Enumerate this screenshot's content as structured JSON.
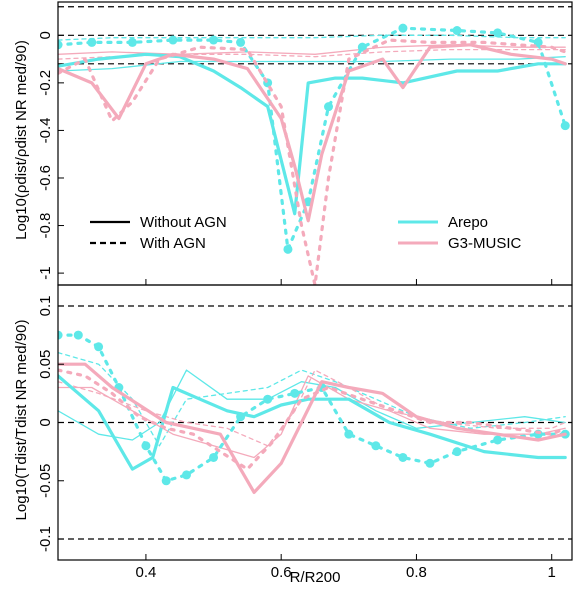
{
  "chart_data": [
    {
      "type": "line",
      "panel": "top",
      "ylabel": "Log10(ρdist/ρdist NR med/90)",
      "xlim": [
        0.27,
        1.03
      ],
      "ylim": [
        -1.05,
        0.14
      ],
      "yticks": [
        0,
        -0.2,
        -0.4,
        -0.6,
        -0.8,
        -1
      ],
      "ytick_labels": [
        "0",
        "-0.2",
        "-0.4",
        "-0.6",
        "-0.8",
        "-1"
      ],
      "reference_lines": [
        0.12,
        0.0,
        -0.12
      ],
      "legend": {
        "styles": [
          {
            "label": "Without AGN",
            "dash": "solid"
          },
          {
            "label": "With AGN",
            "dash": "dashed"
          }
        ],
        "colors": [
          {
            "label": "Arepo",
            "color": "#5ee8e8"
          },
          {
            "label": "G3-MUSIC",
            "color": "#f4aabb"
          }
        ]
      },
      "series": [
        {
          "group": "Arepo",
          "agn": false,
          "weight": "thick",
          "color": "#5ee8e8",
          "x": [
            0.27,
            0.33,
            0.4,
            0.45,
            0.5,
            0.54,
            0.58,
            0.62,
            0.64,
            0.68,
            0.72,
            0.78,
            0.86,
            0.92,
            0.98,
            1.02
          ],
          "y": [
            -0.13,
            -0.1,
            -0.08,
            -0.09,
            -0.15,
            -0.22,
            -0.3,
            -0.75,
            -0.2,
            -0.18,
            -0.18,
            -0.2,
            -0.15,
            -0.15,
            -0.12,
            -0.12
          ]
        },
        {
          "group": "Arepo",
          "agn": false,
          "weight": "thin",
          "color": "#5ee8e8",
          "x": [
            0.27,
            0.35,
            0.45,
            0.55,
            0.65,
            0.75,
            0.85,
            0.95,
            1.02
          ],
          "y": [
            -0.15,
            -0.14,
            -0.11,
            -0.11,
            -0.11,
            -0.11,
            -0.1,
            -0.1,
            -0.09
          ]
        },
        {
          "group": "Arepo",
          "agn": true,
          "weight": "thick",
          "color": "#5ee8e8",
          "x": [
            0.27,
            0.32,
            0.38,
            0.44,
            0.5,
            0.54,
            0.58,
            0.61,
            0.64,
            0.67,
            0.72,
            0.78,
            0.86,
            0.92,
            0.98,
            1.02
          ],
          "y": [
            -0.04,
            -0.03,
            -0.03,
            -0.02,
            -0.02,
            -0.03,
            -0.2,
            -0.9,
            -0.7,
            -0.3,
            -0.05,
            0.03,
            0.02,
            0.01,
            -0.03,
            -0.38
          ]
        },
        {
          "group": "Arepo",
          "agn": true,
          "weight": "thin",
          "color": "#5ee8e8",
          "x": [
            0.27,
            0.35,
            0.45,
            0.55,
            0.65,
            0.75,
            0.85,
            0.95,
            1.02
          ],
          "y": [
            -0.02,
            -0.01,
            -0.01,
            -0.01,
            -0.01,
            0.0,
            0.0,
            -0.01,
            -0.01
          ]
        },
        {
          "group": "G3-MUSIC",
          "agn": false,
          "weight": "thick",
          "color": "#f4aabb",
          "x": [
            0.27,
            0.32,
            0.36,
            0.4,
            0.44,
            0.5,
            0.55,
            0.6,
            0.62,
            0.64,
            0.66,
            0.7,
            0.75,
            0.78,
            0.82,
            0.88,
            0.94,
            1.0,
            1.02
          ],
          "y": [
            -0.14,
            -0.2,
            -0.35,
            -0.12,
            -0.08,
            -0.1,
            -0.14,
            -0.35,
            -0.55,
            -0.78,
            -0.5,
            -0.15,
            -0.1,
            -0.22,
            -0.05,
            -0.04,
            -0.08,
            -0.1,
            -0.12
          ]
        },
        {
          "group": "G3-MUSIC",
          "agn": false,
          "weight": "thin",
          "color": "#f4aabb",
          "x": [
            0.27,
            0.35,
            0.45,
            0.55,
            0.65,
            0.75,
            0.85,
            0.95,
            1.02
          ],
          "y": [
            -0.08,
            -0.07,
            -0.08,
            -0.07,
            -0.08,
            -0.05,
            -0.04,
            -0.05,
            -0.05
          ]
        },
        {
          "group": "G3-MUSIC",
          "agn": true,
          "weight": "thick",
          "color": "#f4aabb",
          "x": [
            0.27,
            0.31,
            0.35,
            0.38,
            0.42,
            0.48,
            0.55,
            0.6,
            0.63,
            0.65,
            0.67,
            0.7,
            0.76,
            0.82,
            0.9,
            1.0,
            1.02
          ],
          "y": [
            -0.16,
            -0.1,
            -0.36,
            -0.28,
            -0.1,
            -0.05,
            -0.06,
            -0.3,
            -0.8,
            -1.05,
            -0.6,
            -0.1,
            -0.02,
            -0.03,
            -0.03,
            -0.05,
            -0.07
          ]
        },
        {
          "group": "G3-MUSIC",
          "agn": true,
          "weight": "thin",
          "color": "#f4aabb",
          "x": [
            0.27,
            0.35,
            0.45,
            0.55,
            0.65,
            0.75,
            0.85,
            0.95,
            1.02
          ],
          "y": [
            -0.1,
            -0.09,
            -0.08,
            -0.08,
            -0.09,
            -0.07,
            -0.06,
            -0.06,
            -0.06
          ]
        }
      ]
    },
    {
      "type": "line",
      "panel": "bottom",
      "xlabel": "R/R200",
      "ylabel": "Log10(Tdist/Tdist NR med/90)",
      "xlim": [
        0.27,
        1.03
      ],
      "ylim": [
        -0.118,
        0.118
      ],
      "xticks": [
        0.4,
        0.6,
        0.8,
        1
      ],
      "xtick_labels": [
        "0.4",
        "0.6",
        "0.8",
        "1"
      ],
      "yticks": [
        0.1,
        0.05,
        0,
        -0.05,
        -0.1
      ],
      "ytick_labels": [
        "0.1",
        "0.05",
        "0",
        "-0.05",
        "-0.1"
      ],
      "reference_lines": [
        0.1,
        0.0,
        -0.1
      ],
      "series": [
        {
          "group": "Arepo",
          "agn": false,
          "weight": "thick",
          "color": "#5ee8e8",
          "x": [
            0.27,
            0.33,
            0.38,
            0.41,
            0.44,
            0.48,
            0.52,
            0.56,
            0.6,
            0.64,
            0.7,
            0.76,
            0.82,
            0.9,
            0.98,
            1.02
          ],
          "y": [
            0.04,
            0.01,
            -0.04,
            -0.03,
            0.03,
            0.02,
            0.01,
            0.005,
            0.015,
            0.02,
            0.02,
            0.0,
            -0.01,
            -0.025,
            -0.03,
            -0.03
          ]
        },
        {
          "group": "Arepo",
          "agn": false,
          "weight": "thin",
          "color": "#5ee8e8",
          "x": [
            0.27,
            0.33,
            0.38,
            0.42,
            0.46,
            0.52,
            0.58,
            0.63,
            0.68,
            0.74,
            0.8,
            0.88,
            0.96,
            1.02
          ],
          "y": [
            0.01,
            -0.01,
            -0.015,
            0.0,
            0.045,
            0.02,
            0.02,
            0.035,
            0.03,
            0.01,
            -0.005,
            0.0,
            0.005,
            0.0
          ]
        },
        {
          "group": "Arepo",
          "agn": true,
          "weight": "thick",
          "color": "#5ee8e8",
          "x": [
            0.27,
            0.3,
            0.33,
            0.36,
            0.4,
            0.43,
            0.46,
            0.5,
            0.54,
            0.58,
            0.62,
            0.66,
            0.7,
            0.74,
            0.78,
            0.82,
            0.86,
            0.92,
            0.98,
            1.02
          ],
          "y": [
            0.075,
            0.075,
            0.065,
            0.03,
            -0.02,
            -0.05,
            -0.045,
            -0.03,
            0.005,
            0.02,
            0.025,
            0.03,
            -0.01,
            -0.02,
            -0.03,
            -0.035,
            -0.025,
            -0.015,
            -0.01,
            -0.01
          ]
        },
        {
          "group": "Arepo",
          "agn": true,
          "weight": "thin",
          "color": "#5ee8e8",
          "x": [
            0.27,
            0.33,
            0.38,
            0.42,
            0.46,
            0.52,
            0.58,
            0.63,
            0.68,
            0.74,
            0.8,
            0.88,
            0.96,
            1.02
          ],
          "y": [
            0.06,
            0.05,
            0.02,
            -0.02,
            0.02,
            0.025,
            0.03,
            0.045,
            0.035,
            0.02,
            0.005,
            -0.005,
            0.0,
            0.005
          ]
        },
        {
          "group": "G3-MUSIC",
          "agn": false,
          "weight": "thick",
          "color": "#f4aabb",
          "x": [
            0.27,
            0.31,
            0.35,
            0.39,
            0.43,
            0.47,
            0.51,
            0.56,
            0.6,
            0.63,
            0.66,
            0.7,
            0.75,
            0.8,
            0.86,
            0.92,
            0.98,
            1.02
          ],
          "y": [
            0.05,
            0.05,
            0.03,
            0.015,
            0.0,
            -0.005,
            -0.01,
            -0.06,
            -0.035,
            0.0,
            0.035,
            0.03,
            0.025,
            0.005,
            -0.005,
            -0.01,
            -0.015,
            -0.01
          ]
        },
        {
          "group": "G3-MUSIC",
          "agn": false,
          "weight": "thin",
          "color": "#f4aabb",
          "x": [
            0.27,
            0.32,
            0.38,
            0.44,
            0.5,
            0.56,
            0.6,
            0.64,
            0.7,
            0.76,
            0.82,
            0.9,
            0.98,
            1.02
          ],
          "y": [
            0.03,
            0.03,
            0.01,
            -0.01,
            -0.02,
            -0.03,
            -0.01,
            0.04,
            0.02,
            0.01,
            -0.005,
            -0.01,
            -0.01,
            -0.005
          ]
        },
        {
          "group": "G3-MUSIC",
          "agn": true,
          "weight": "thick",
          "color": "#f4aabb",
          "x": [
            0.27,
            0.31,
            0.35,
            0.39,
            0.43,
            0.47,
            0.51,
            0.55,
            0.59,
            0.63,
            0.67,
            0.72,
            0.77,
            0.82,
            0.88,
            0.94,
            1.0,
            1.02
          ],
          "y": [
            0.045,
            0.04,
            0.025,
            0.005,
            -0.005,
            -0.01,
            -0.025,
            -0.04,
            -0.015,
            0.02,
            0.03,
            0.02,
            0.01,
            0.0,
            0.0,
            -0.005,
            -0.01,
            -0.005
          ]
        },
        {
          "group": "G3-MUSIC",
          "agn": true,
          "weight": "thin",
          "color": "#f4aabb",
          "x": [
            0.27,
            0.33,
            0.4,
            0.46,
            0.52,
            0.58,
            0.62,
            0.65,
            0.7,
            0.76,
            0.84,
            0.92,
            1.0,
            1.02
          ],
          "y": [
            0.035,
            0.025,
            0.01,
            0.0,
            -0.005,
            -0.02,
            0.01,
            0.045,
            0.03,
            0.01,
            0.0,
            -0.005,
            -0.005,
            0.0
          ]
        }
      ]
    }
  ]
}
